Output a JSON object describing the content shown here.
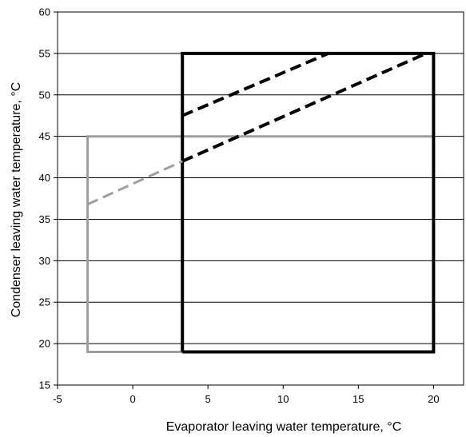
{
  "chart_data": {
    "type": "line",
    "title": "",
    "xlabel": "Evaporator leaving water temperature, °C",
    "ylabel": "Condenser leaving water temperature, °C",
    "xlim": [
      -5,
      22
    ],
    "ylim": [
      15,
      60
    ],
    "x_ticks": [
      -5,
      0,
      5,
      10,
      15,
      20
    ],
    "y_ticks": [
      15,
      20,
      25,
      30,
      35,
      40,
      45,
      50,
      55,
      60
    ],
    "grid": "horizontal",
    "legend": "none",
    "series": [
      {
        "style": "solid",
        "color": "#9e9e9e",
        "points": [
          [
            3.3,
            19
          ],
          [
            -3,
            19
          ],
          [
            -3,
            45
          ],
          [
            20,
            45
          ]
        ]
      },
      {
        "style": "solid",
        "color": "#000000",
        "points": [
          [
            3.3,
            19
          ],
          [
            20,
            19
          ],
          [
            20,
            55
          ],
          [
            3.3,
            55
          ],
          [
            3.3,
            19
          ]
        ]
      },
      {
        "style": "dashed",
        "color": "#000000",
        "points": [
          [
            3.3,
            47.5
          ],
          [
            13,
            55
          ]
        ]
      },
      {
        "style": "dashed",
        "color": "#000000",
        "points": [
          [
            3.3,
            42
          ],
          [
            19.5,
            55
          ]
        ]
      },
      {
        "style": "dashed",
        "color": "#9e9e9e",
        "points": [
          [
            -3,
            36.8
          ],
          [
            3.3,
            42
          ]
        ]
      }
    ]
  }
}
